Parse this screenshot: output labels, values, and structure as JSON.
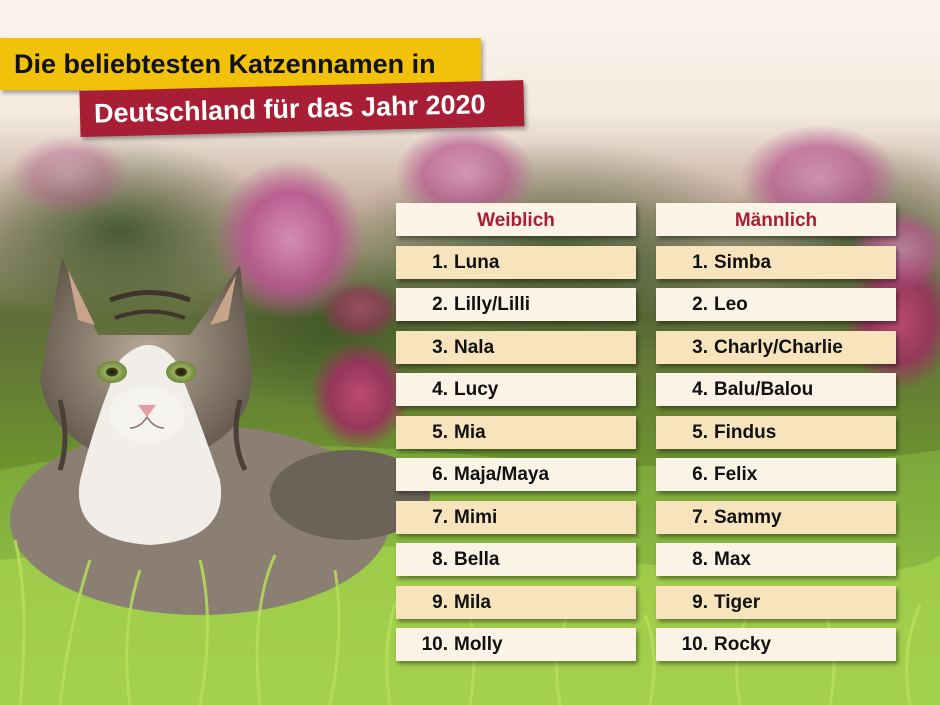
{
  "title": {
    "line1": "Die beliebtesten Katzennamen in",
    "line2": "Deutschland für das Jahr 2020"
  },
  "colors": {
    "yellow_banner": "#f2c20a",
    "red_banner": "#a81e35",
    "card": "#fbf4e6",
    "card_alt": "#f7e4bc",
    "header_text": "#a81e35"
  },
  "scene": {
    "subject": "cat-photo",
    "background": "hydrangea-flowers-and-grass"
  },
  "columns": {
    "female": {
      "header": "Weiblich",
      "items": [
        {
          "rank": "1.",
          "name": "Luna"
        },
        {
          "rank": "2.",
          "name": "Lilly/Lilli"
        },
        {
          "rank": "3.",
          "name": "Nala"
        },
        {
          "rank": "4.",
          "name": "Lucy"
        },
        {
          "rank": "5.",
          "name": "Mia"
        },
        {
          "rank": "6.",
          "name": "Maja/Maya"
        },
        {
          "rank": "7.",
          "name": "Mimi"
        },
        {
          "rank": "8.",
          "name": "Bella"
        },
        {
          "rank": "9.",
          "name": "Mila"
        },
        {
          "rank": "10.",
          "name": "Molly"
        }
      ]
    },
    "male": {
      "header": "Männlich",
      "items": [
        {
          "rank": "1.",
          "name": "Simba"
        },
        {
          "rank": "2.",
          "name": "Leo"
        },
        {
          "rank": "3.",
          "name": "Charly/Charlie"
        },
        {
          "rank": "4.",
          "name": "Balu/Balou"
        },
        {
          "rank": "5.",
          "name": "Findus"
        },
        {
          "rank": "6.",
          "name": "Felix"
        },
        {
          "rank": "7.",
          "name": "Sammy"
        },
        {
          "rank": "8.",
          "name": "Max"
        },
        {
          "rank": "9.",
          "name": "Tiger"
        },
        {
          "rank": "10.",
          "name": "Rocky"
        }
      ]
    }
  }
}
